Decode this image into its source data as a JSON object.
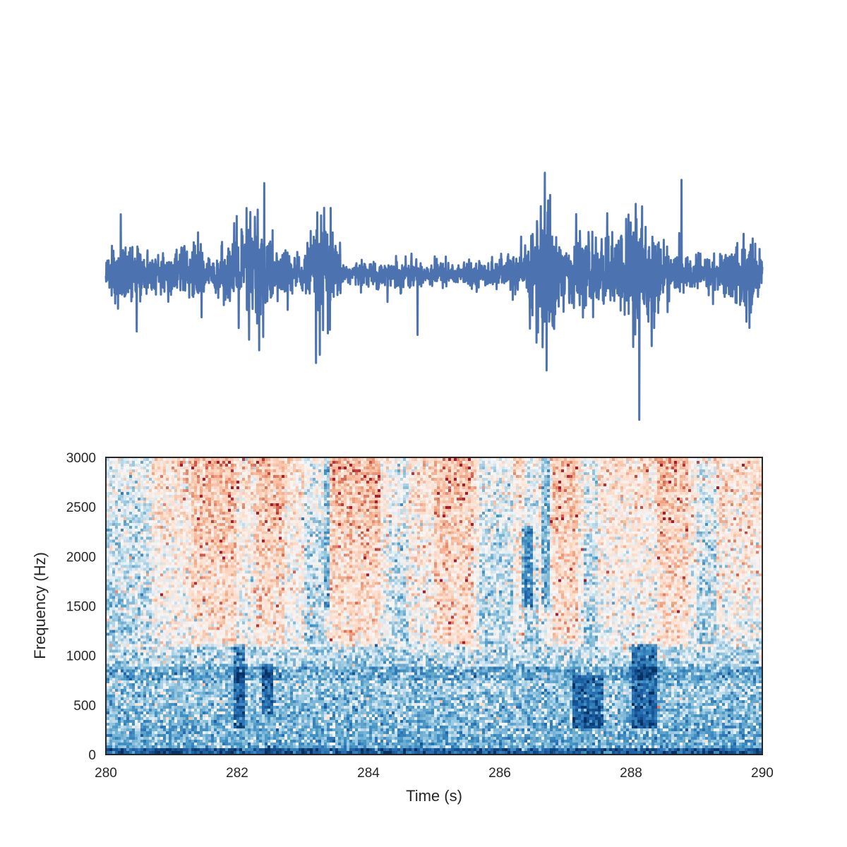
{
  "chart_data": [
    {
      "type": "line",
      "title": "",
      "xlabel": "",
      "ylabel": "",
      "axes_visible": false,
      "grid": false,
      "line_color": "#4c72b0",
      "xlim": [
        280,
        290
      ],
      "ylim": [
        -1,
        1
      ],
      "series": [
        {
          "values_description_note": null,
          "x": [
            280.0,
            280.2,
            280.35,
            280.6,
            281.0,
            281.35,
            281.6,
            282.0,
            282.25,
            282.6,
            283.0,
            283.35,
            283.6,
            284.0,
            284.5,
            285.0,
            285.5,
            286.0,
            286.35,
            286.7,
            287.0,
            287.3,
            287.6,
            287.9,
            288.1,
            288.3,
            288.6,
            289.0,
            289.4,
            289.8,
            290.0
          ],
          "y": [
            0.12,
            0.38,
            0.25,
            0.18,
            0.2,
            0.3,
            0.12,
            0.38,
            0.7,
            0.25,
            0.18,
            0.62,
            0.12,
            0.1,
            0.14,
            0.12,
            0.1,
            0.14,
            0.2,
            0.86,
            0.25,
            0.35,
            0.3,
            0.4,
            0.85,
            0.45,
            0.2,
            0.15,
            0.2,
            0.4,
            0.12
          ]
        }
      ]
    },
    {
      "type": "heatmap",
      "title": "",
      "xlabel": "Time (s)",
      "ylabel": "Frequency (Hz)",
      "xlim": [
        280,
        290
      ],
      "ylim": [
        0,
        3000
      ],
      "xticks": [
        "280",
        "282",
        "284",
        "286",
        "288",
        "290"
      ],
      "yticks": [
        "0",
        "500",
        "1000",
        "1500",
        "2000",
        "2500",
        "3000"
      ],
      "colormap": "RdBu_r",
      "grid": false,
      "dark_bands": [
        {
          "t_start": 281.95,
          "t_end": 282.1,
          "f_low": 250,
          "f_high": 1100
        },
        {
          "t_start": 282.35,
          "t_end": 282.55,
          "f_low": 400,
          "f_high": 900
        },
        {
          "t_start": 283.3,
          "t_end": 283.4,
          "f_low": 1500,
          "f_high": 3000
        },
        {
          "t_start": 286.35,
          "t_end": 286.5,
          "f_low": 1500,
          "f_high": 2300
        },
        {
          "t_start": 286.65,
          "t_end": 286.75,
          "f_low": 1500,
          "f_high": 3000
        },
        {
          "t_start": 287.1,
          "t_end": 287.6,
          "f_low": 250,
          "f_high": 800
        },
        {
          "t_start": 288.0,
          "t_end": 288.4,
          "f_low": 250,
          "f_high": 1100
        }
      ]
    }
  ]
}
